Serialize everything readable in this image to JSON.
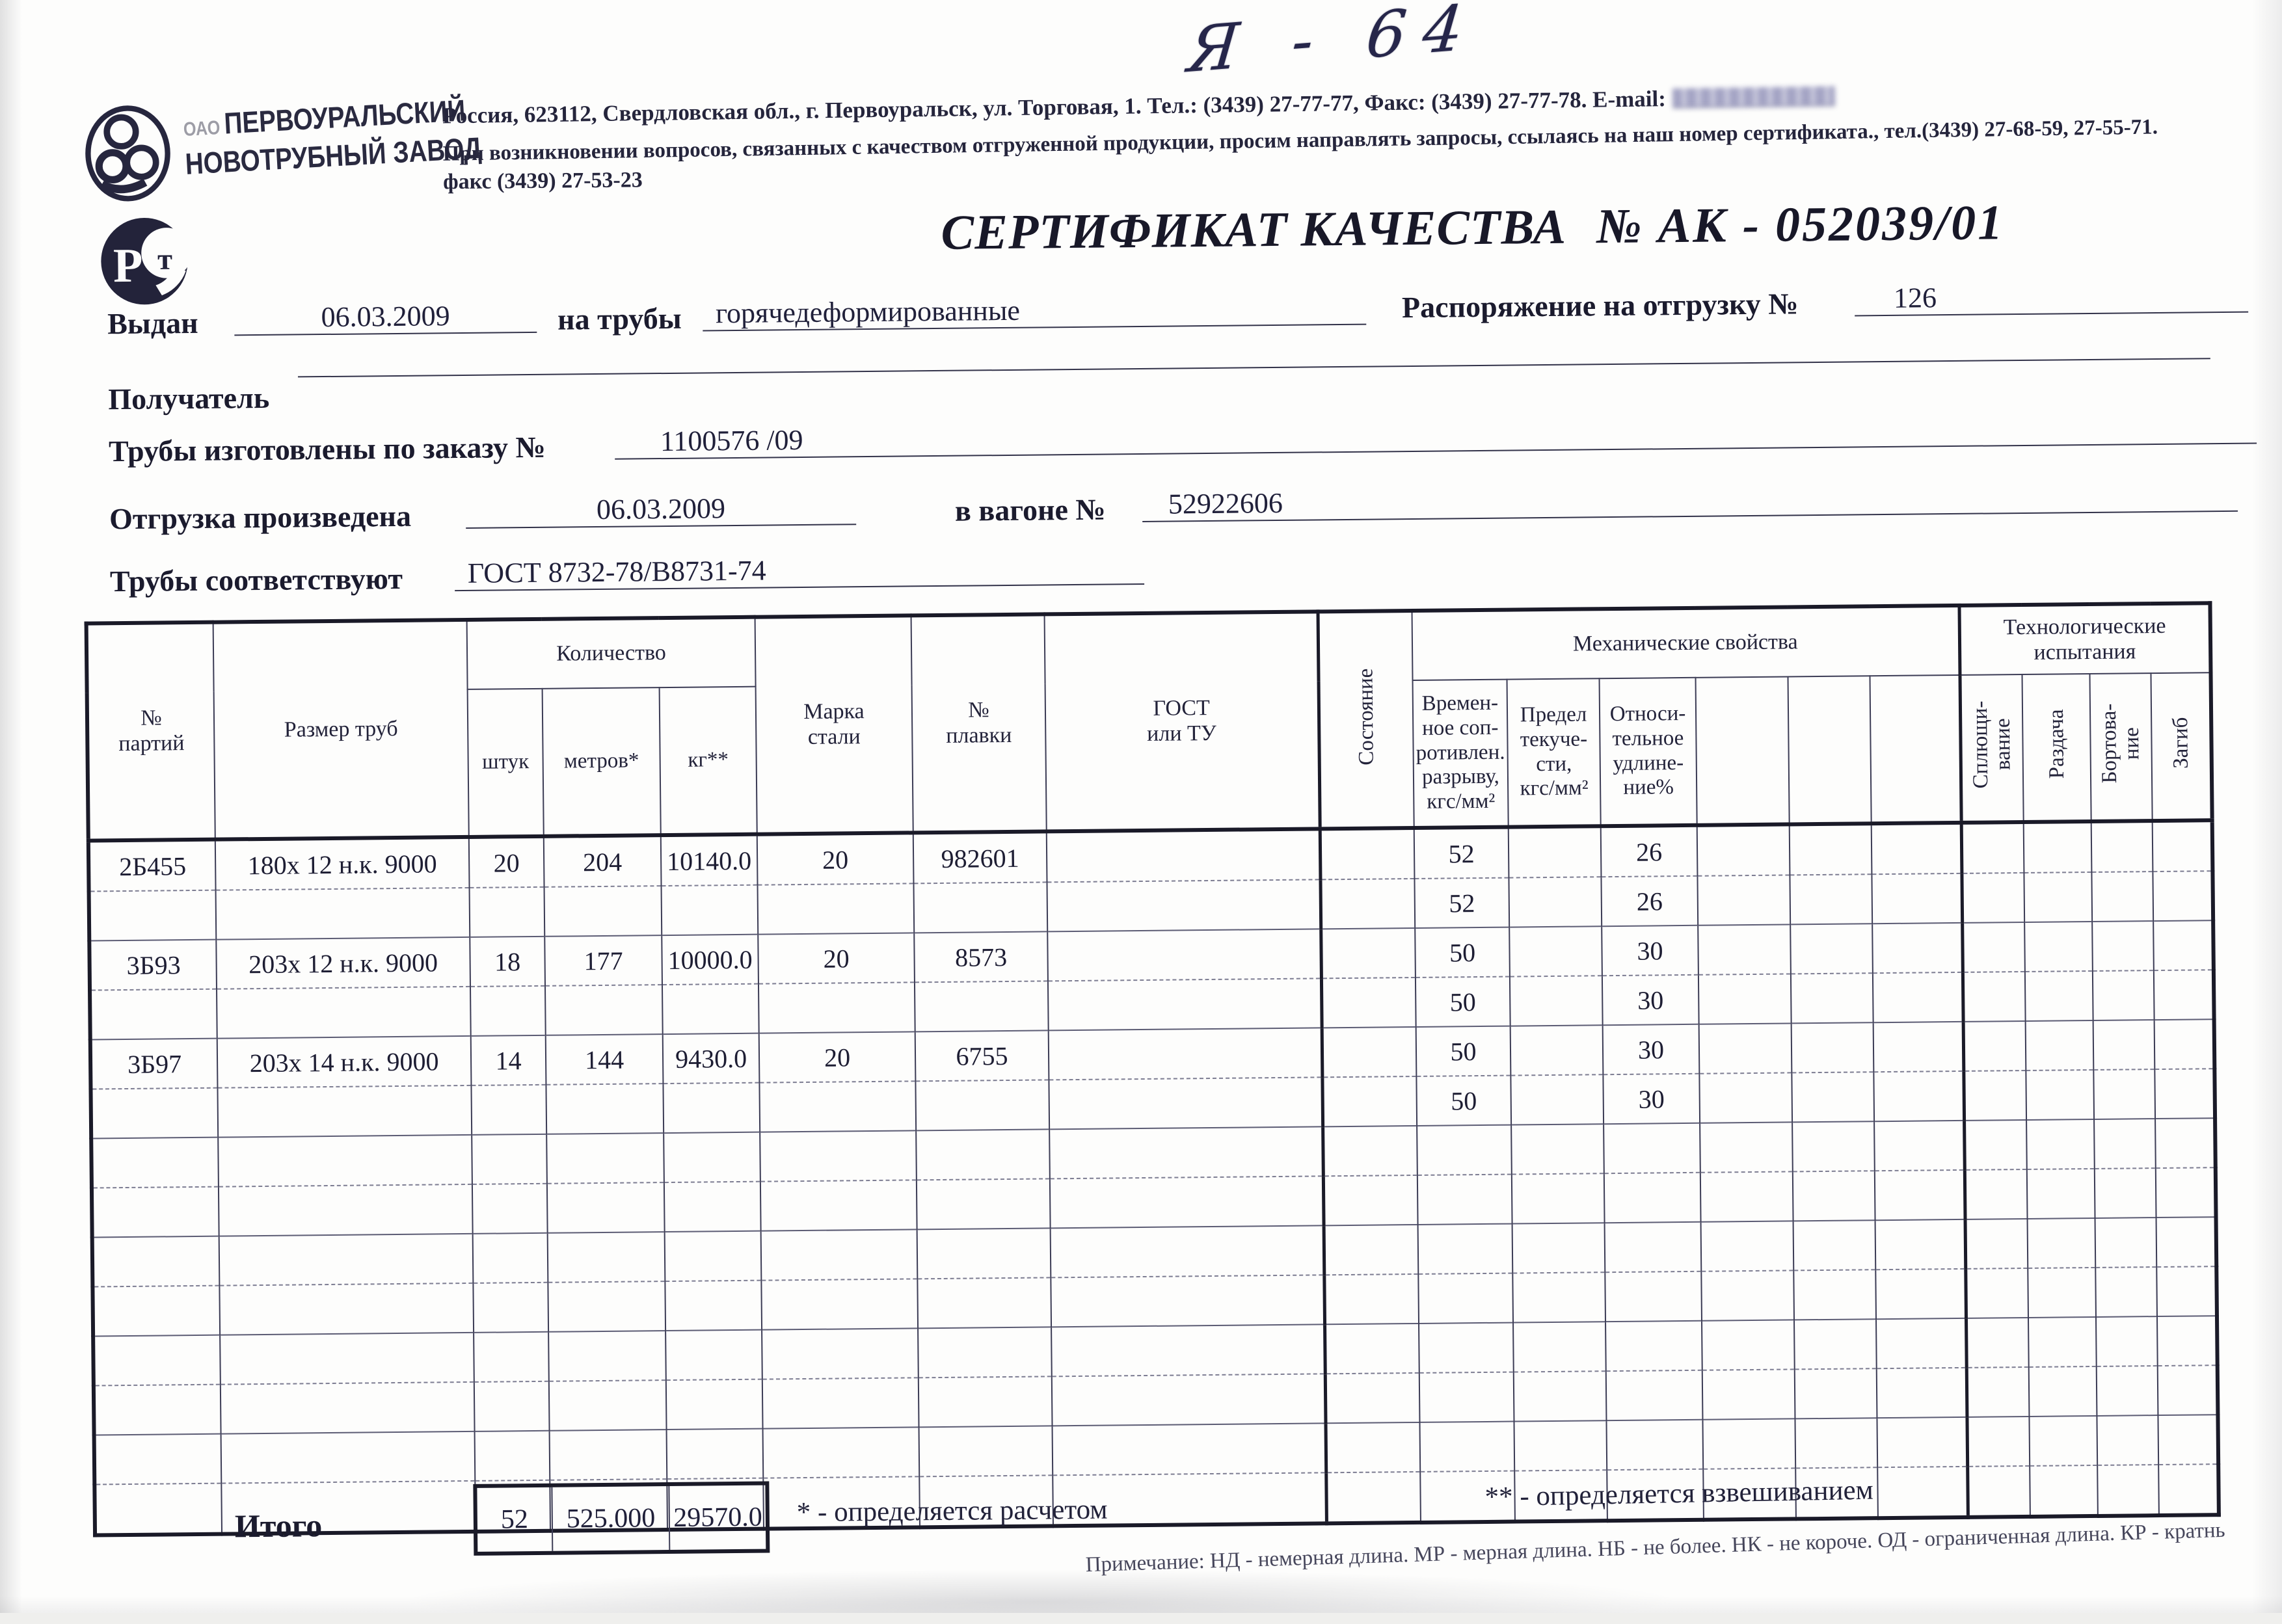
{
  "handwriting": "Я - 64",
  "header": {
    "logo": {
      "org_prefix": "ОАО",
      "line1": "ПЕРВОУРАЛЬСКИЙ",
      "line2": "НОВОТРУБНЫЙ  ЗАВОД"
    },
    "address_line": "Россия, 623112, Свердловская обл., г. Первоуральск, ул. Торговая, 1. Тел.: (3439) 27-77-77, Факс: (3439) 27-77-78.  E-mail:",
    "support_line": "При возникновении вопросов, связанных с качеством отгруженной продукции, просим направлять запросы, ссылаясь на наш номер сертификата., тел.(3439) 27-68-59, 27-55-71.",
    "fax_line": "факс (3439) 27-53-23"
  },
  "title": {
    "label": "СЕРТИФИКАТ КАЧЕСТВА",
    "number": "№  АК - 052039/01"
  },
  "fields": {
    "issued_label": "Выдан",
    "issued_value": "06.03.2009",
    "pipes_label": "на трубы",
    "pipes_value": "горячедеформированные",
    "ship_order_label": "Распоряжение на отгрузку №",
    "ship_order_value": "126",
    "receiver_label": "Получатель",
    "receiver_value": "",
    "made_by_order_label": "Трубы изготовлены по заказу №",
    "made_by_order_value": "1100576   /09",
    "shipped_label": "Отгрузка произведена",
    "shipped_value": "06.03.2009",
    "wagon_label": "в вагоне №",
    "wagon_value": "52922606",
    "conform_label": "Трубы соответствуют",
    "conform_value": "ГОСТ 8732-78/В8731-74"
  },
  "table": {
    "headers": {
      "batch": "№\nпартий",
      "size": "Размер труб",
      "quantity": "Количество",
      "pcs": "штук",
      "meters": "метров*",
      "kg": "кг**",
      "grade": "Марка\nстали",
      "melt": "№\nплавки",
      "gost": "ГОСТ\nили ТУ",
      "state": "Состояние",
      "mech": "Механические свойства",
      "tensile": "Времен-\nное соп-\nротивлен.\nразрыву,\nкгс/мм²",
      "yield": "Предел\nтекуче-\nсти,\nкгс/мм²",
      "elong": "Относи-\nтельное\nудлине-\nние%",
      "tech": "Технологические\nиспытания",
      "flatten": "Сплющи-\nвание",
      "expand": "Раздача",
      "flange": "Бортова-\nние",
      "bend": "Загиб"
    },
    "rows": [
      [
        "2Б455",
        "180х 12 н.к. 9000",
        "20",
        "204",
        "10140.0",
        "20",
        "982601",
        "",
        "",
        "52",
        "",
        "26",
        "",
        "",
        "",
        "",
        "",
        "",
        ""
      ],
      [
        "",
        "",
        "",
        "",
        "",
        "",
        "",
        "",
        "",
        "52",
        "",
        "26",
        "",
        "",
        "",
        "",
        "",
        "",
        ""
      ],
      [
        "3Б93",
        "203х 12 н.к. 9000",
        "18",
        "177",
        "10000.0",
        "20",
        "8573",
        "",
        "",
        "50",
        "",
        "30",
        "",
        "",
        "",
        "",
        "",
        "",
        ""
      ],
      [
        "",
        "",
        "",
        "",
        "",
        "",
        "",
        "",
        "",
        "50",
        "",
        "30",
        "",
        "",
        "",
        "",
        "",
        "",
        ""
      ],
      [
        "3Б97",
        "203х 14 н.к. 9000",
        "14",
        "144",
        "9430.0",
        "20",
        "6755",
        "",
        "",
        "50",
        "",
        "30",
        "",
        "",
        "",
        "",
        "",
        "",
        ""
      ],
      [
        "",
        "",
        "",
        "",
        "",
        "",
        "",
        "",
        "",
        "50",
        "",
        "30",
        "",
        "",
        "",
        "",
        "",
        "",
        ""
      ],
      [
        "",
        "",
        "",
        "",
        "",
        "",
        "",
        "",
        "",
        "",
        "",
        "",
        "",
        "",
        "",
        "",
        "",
        "",
        ""
      ],
      [
        "",
        "",
        "",
        "",
        "",
        "",
        "",
        "",
        "",
        "",
        "",
        "",
        "",
        "",
        "",
        "",
        "",
        "",
        ""
      ],
      [
        "",
        "",
        "",
        "",
        "",
        "",
        "",
        "",
        "",
        "",
        "",
        "",
        "",
        "",
        "",
        "",
        "",
        "",
        ""
      ],
      [
        "",
        "",
        "",
        "",
        "",
        "",
        "",
        "",
        "",
        "",
        "",
        "",
        "",
        "",
        "",
        "",
        "",
        "",
        ""
      ],
      [
        "",
        "",
        "",
        "",
        "",
        "",
        "",
        "",
        "",
        "",
        "",
        "",
        "",
        "",
        "",
        "",
        "",
        "",
        ""
      ],
      [
        "",
        "",
        "",
        "",
        "",
        "",
        "",
        "",
        "",
        "",
        "",
        "",
        "",
        "",
        "",
        "",
        "",
        "",
        ""
      ],
      [
        "",
        "",
        "",
        "",
        "",
        "",
        "",
        "",
        "",
        "",
        "",
        "",
        "",
        "",
        "",
        "",
        "",
        "",
        ""
      ],
      [
        "",
        "",
        "",
        "",
        "",
        "",
        "",
        "",
        "",
        "",
        "",
        "",
        "",
        "",
        "",
        "",
        "",
        "",
        ""
      ]
    ],
    "totals": {
      "label": "Итого",
      "pieces": "52",
      "meters": "525.000",
      "kg": "29570.0"
    }
  },
  "footnotes": {
    "star": "* - определяется расчетом",
    "double_star": "** - определяется взвешиванием",
    "note": "Примечание: НД - немерная длина. МР - мерная длина. НБ - не более. НК - не короче. ОД - ограниченная длина. КР - кратнь"
  }
}
